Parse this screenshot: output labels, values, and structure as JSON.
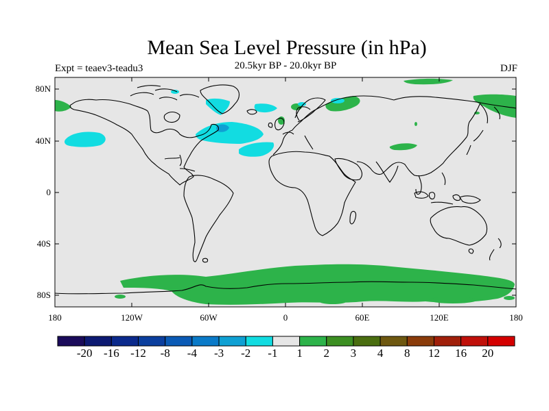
{
  "header": {
    "title": "Mean Sea Level Pressure (in hPa)",
    "experiment": "Expt = teaev3-teadu3",
    "period": "20.5kyr BP - 20.0kyr BP",
    "season": "DJF"
  },
  "axes": {
    "lat_ticks": [
      "80N",
      "40N",
      "0",
      "40S",
      "80S"
    ],
    "lon_ticks": [
      "180",
      "120W",
      "60W",
      "0",
      "60E",
      "120E",
      "180"
    ]
  },
  "colorbar": {
    "colors": [
      "#1a0b5a",
      "#0d1a72",
      "#0b2a8c",
      "#0b3f9e",
      "#0a5ab5",
      "#0a7ac8",
      "#0fa0d3",
      "#12dce1",
      "#e6e6e6",
      "#2db34a",
      "#3c8f22",
      "#4a6e10",
      "#6e5810",
      "#8a3c0a",
      "#a0200a",
      "#c0100a",
      "#d40000"
    ],
    "labels": [
      "-20",
      "-16",
      "-12",
      "-8",
      "-4",
      "-3",
      "-2",
      "-1",
      "1",
      "2",
      "3",
      "4",
      "8",
      "12",
      "16",
      "20"
    ]
  },
  "map_colors": {
    "background": "#e6e6e6",
    "positive": "#2db34a",
    "negative": "#12dce1",
    "negative_strong": "#0fa0d3"
  }
}
